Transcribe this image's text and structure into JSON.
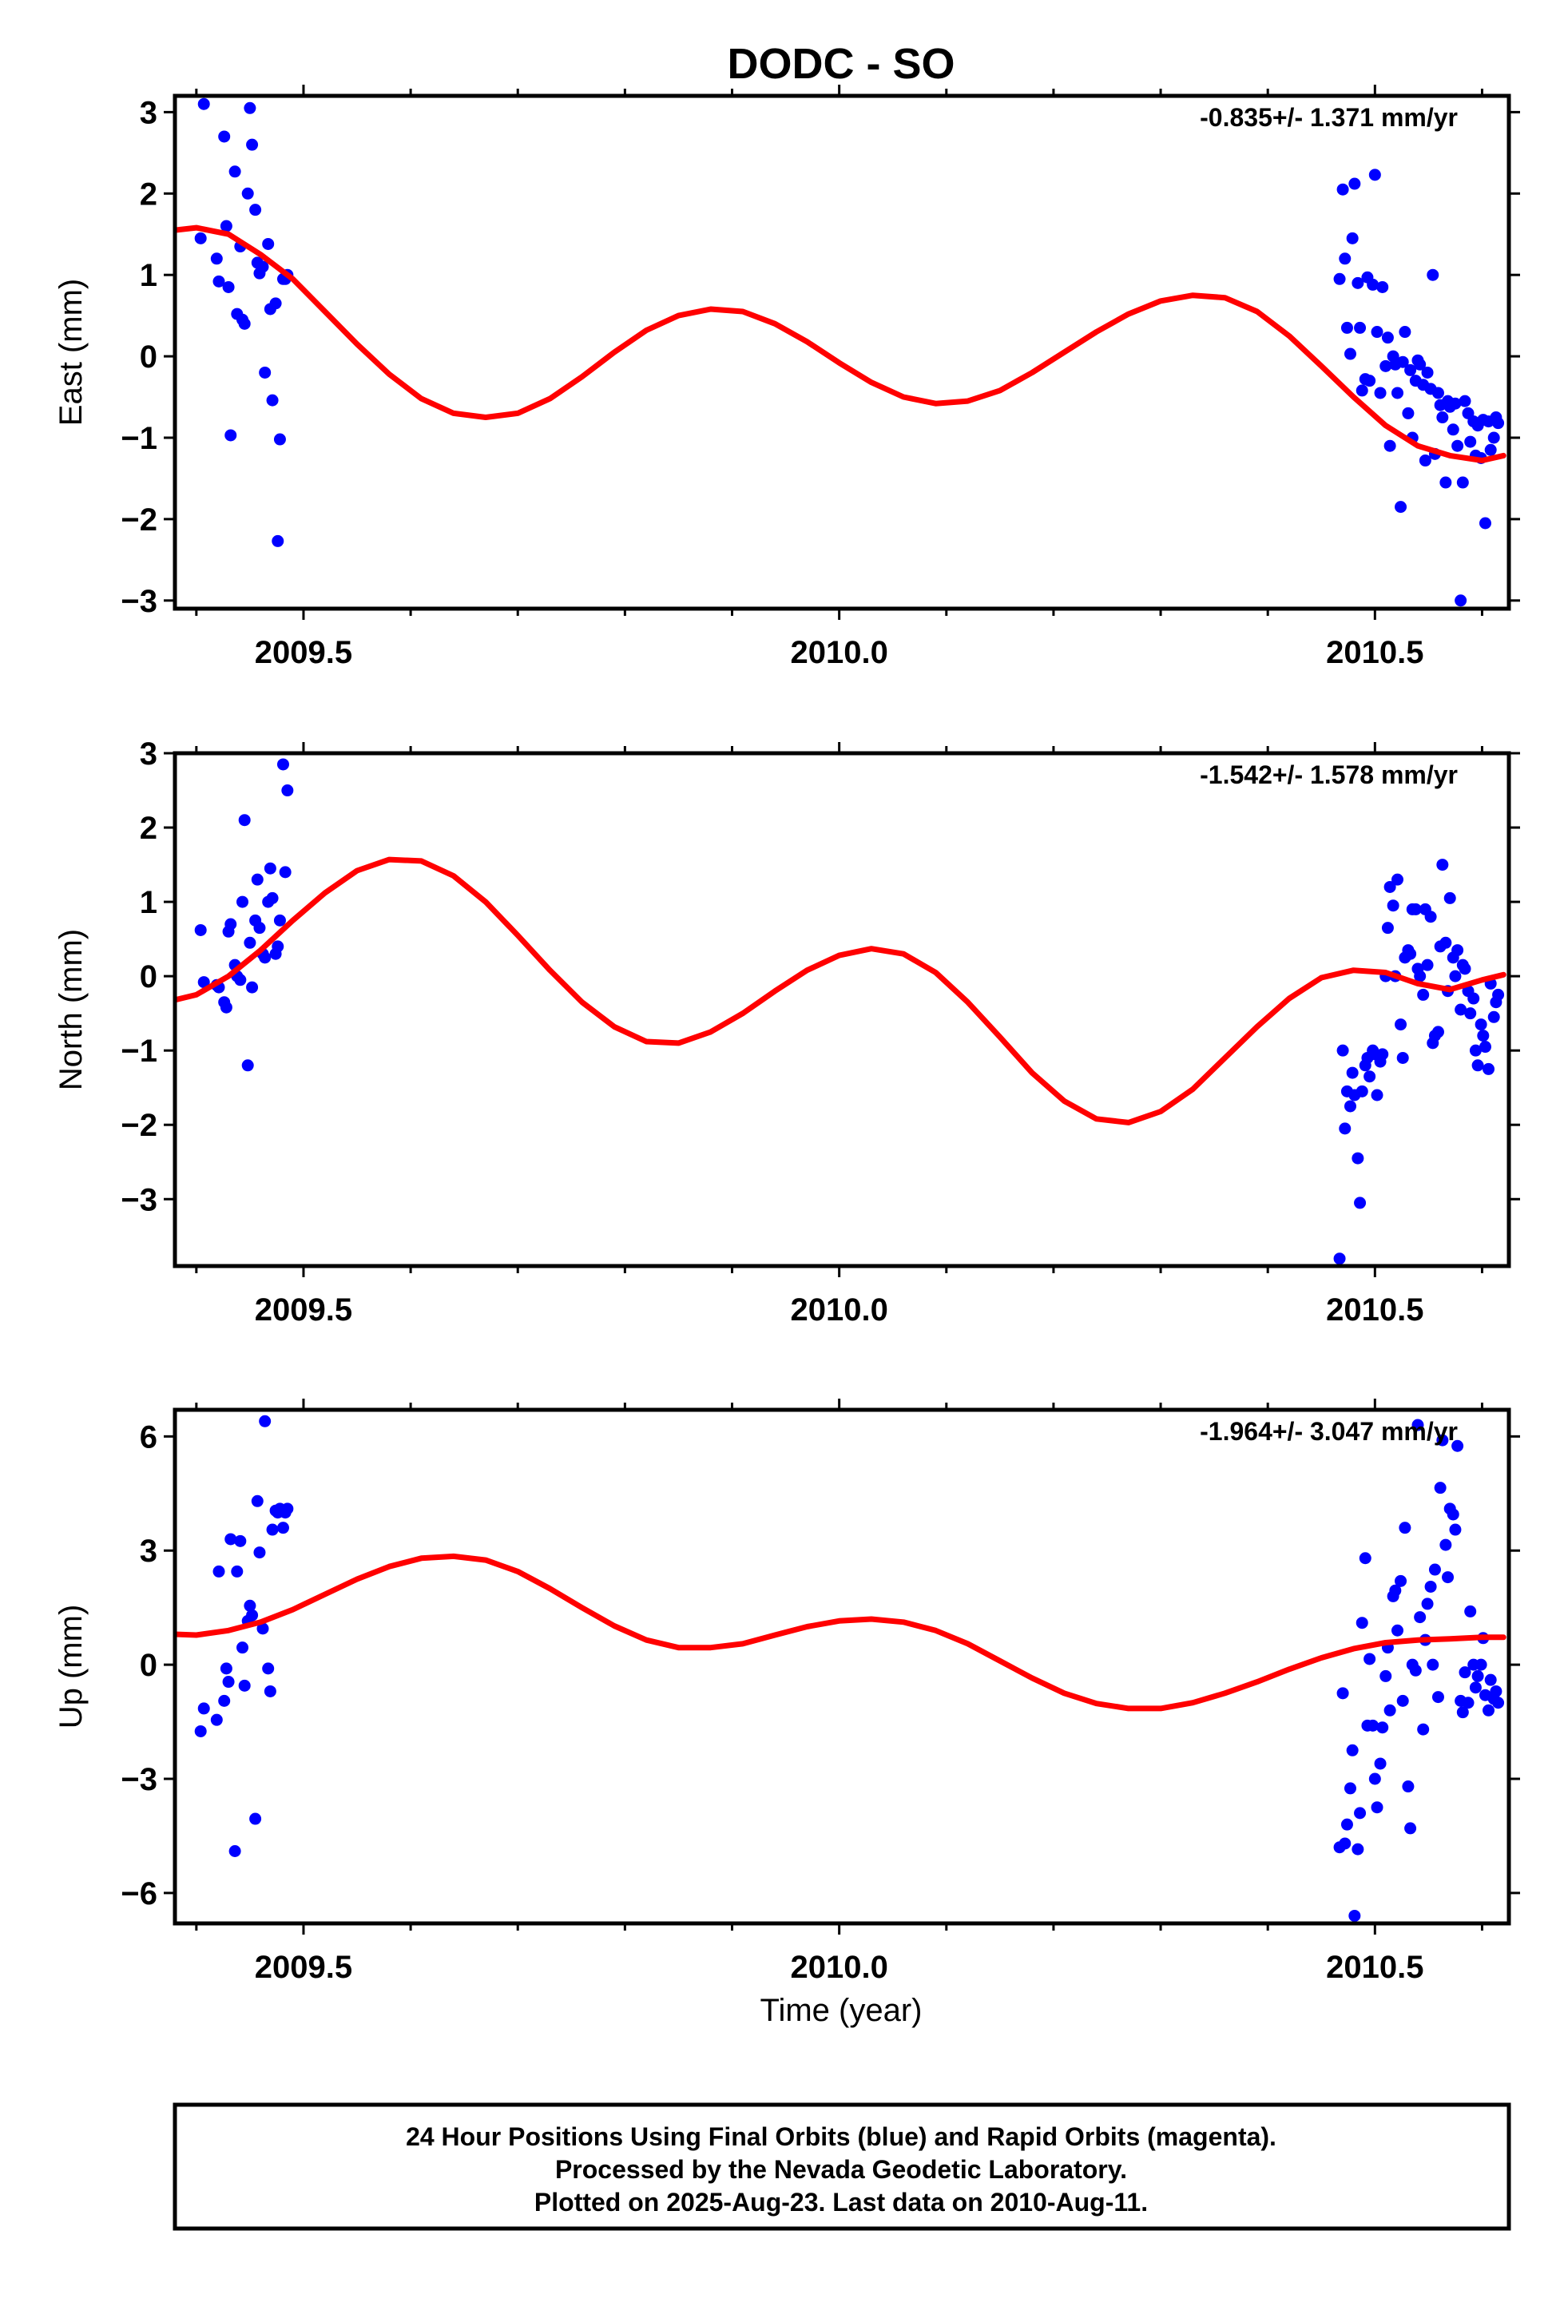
{
  "title": "DODC - SO",
  "xlabel": "Time (year)",
  "footer": {
    "line1": "24 Hour Positions Using Final Orbits (blue) and Rapid Orbits (magenta).",
    "line2": "Processed by the Nevada Geodetic Laboratory.",
    "line3": "Plotted on 2025-Aug-23. Last data on 2010-Aug-11."
  },
  "colors": {
    "final_orbits": "#0000ff",
    "model": "#ff0000",
    "frame": "#000000"
  },
  "chart_data": [
    {
      "type": "scatter",
      "ylabel": "East (mm)",
      "rate_label": "-0.835+/- 1.371 mm/yr",
      "xlim": [
        2009.38,
        2010.625
      ],
      "ylim": [
        -3.1,
        3.2
      ],
      "x_ticks": [
        "2009.5",
        "2010.0",
        "2010.5"
      ],
      "y_ticks": [
        "3",
        "2",
        "1",
        "0",
        "−1",
        "−2",
        "−3"
      ],
      "y_tick_values": [
        3,
        2,
        1,
        0,
        -1,
        -2,
        -3
      ],
      "series": [
        {
          "kind": "points",
          "x": [
            2009.404,
            2009.407,
            2009.419,
            2009.421,
            2009.426,
            2009.428,
            2009.43,
            2009.432,
            2009.436,
            2009.438,
            2009.441,
            2009.443,
            2009.445,
            2009.448,
            2009.45,
            2009.452,
            2009.455,
            2009.457,
            2009.459,
            2009.462,
            2009.464,
            2009.467,
            2009.469,
            2009.471,
            2009.474,
            2009.476,
            2009.478,
            2009.481,
            2009.483,
            2009.485,
            2010.467,
            2010.47,
            2010.472,
            2010.474,
            2010.477,
            2010.479,
            2010.481,
            2010.484,
            2010.486,
            2010.488,
            2010.491,
            2010.493,
            2010.495,
            2010.498,
            2010.5,
            2010.502,
            2010.505,
            2010.507,
            2010.51,
            2010.512,
            2010.514,
            2010.517,
            2010.519,
            2010.521,
            2010.524,
            2010.526,
            2010.528,
            2010.531,
            2010.533,
            2010.535,
            2010.538,
            2010.54,
            2010.542,
            2010.545,
            2010.547,
            2010.549,
            2010.552,
            2010.554,
            2010.556,
            2010.559,
            2010.561,
            2010.563,
            2010.566,
            2010.568,
            2010.57,
            2010.573,
            2010.575,
            2010.577,
            2010.58,
            2010.582,
            2010.584,
            2010.587,
            2010.589,
            2010.592,
            2010.594,
            2010.596,
            2010.599,
            2010.601,
            2010.603,
            2010.606,
            2010.608,
            2010.611,
            2010.613,
            2010.615
          ],
          "y": [
            1.45,
            3.1,
            1.2,
            0.92,
            2.7,
            1.6,
            0.85,
            -0.97,
            2.27,
            0.52,
            1.35,
            0.45,
            0.4,
            2.0,
            3.05,
            2.6,
            1.8,
            1.15,
            1.02,
            1.1,
            -0.2,
            1.38,
            0.58,
            -0.54,
            0.65,
            -2.27,
            -1.02,
            0.95,
            0.95,
            1.0,
            0.95,
            2.05,
            1.2,
            0.35,
            0.03,
            1.45,
            2.12,
            0.9,
            0.35,
            -0.42,
            -0.28,
            0.97,
            -0.3,
            0.88,
            2.23,
            0.3,
            -0.45,
            0.85,
            -0.12,
            0.23,
            -1.1,
            0.0,
            -0.1,
            -0.45,
            -1.85,
            -0.07,
            0.3,
            -0.7,
            -0.17,
            -1.0,
            -0.3,
            -0.05,
            -0.1,
            -0.35,
            -1.28,
            -0.2,
            -0.4,
            1.0,
            -1.2,
            -0.45,
            -0.6,
            -0.75,
            -1.55,
            -0.55,
            -0.62,
            -0.9,
            -0.58,
            -1.1,
            -3.0,
            -1.55,
            -0.55,
            -0.7,
            -1.05,
            -0.8,
            -1.22,
            -0.85,
            -1.25,
            -0.78,
            -2.05,
            -0.8,
            -1.15,
            -1.0,
            -0.75,
            -0.82
          ]
        },
        {
          "kind": "model",
          "x": [
            2009.38,
            2009.4,
            2009.43,
            2009.46,
            2009.49,
            2009.52,
            2009.55,
            2009.58,
            2009.61,
            2009.64,
            2009.67,
            2009.7,
            2009.73,
            2009.76,
            2009.79,
            2009.82,
            2009.85,
            2009.88,
            2009.91,
            2009.94,
            2009.97,
            2010.0,
            2010.03,
            2010.06,
            2010.09,
            2010.12,
            2010.15,
            2010.18,
            2010.21,
            2010.24,
            2010.27,
            2010.3,
            2010.33,
            2010.36,
            2010.39,
            2010.42,
            2010.45,
            2010.48,
            2010.51,
            2010.54,
            2010.57,
            2010.6,
            2010.62
          ],
          "y": [
            1.55,
            1.58,
            1.5,
            1.25,
            0.95,
            0.55,
            0.15,
            -0.22,
            -0.52,
            -0.7,
            -0.75,
            -0.7,
            -0.52,
            -0.25,
            0.05,
            0.32,
            0.5,
            0.58,
            0.55,
            0.4,
            0.18,
            -0.08,
            -0.32,
            -0.5,
            -0.58,
            -0.55,
            -0.42,
            -0.2,
            0.05,
            0.3,
            0.52,
            0.68,
            0.75,
            0.72,
            0.55,
            0.25,
            -0.12,
            -0.5,
            -0.85,
            -1.1,
            -1.22,
            -1.28,
            -1.22
          ]
        }
      ]
    },
    {
      "type": "scatter",
      "ylabel": "North (mm)",
      "rate_label": "-1.542+/- 1.578 mm/yr",
      "xlim": [
        2009.38,
        2010.625
      ],
      "ylim": [
        -3.9,
        3.0
      ],
      "x_ticks": [
        "2009.5",
        "2010.0",
        "2010.5"
      ],
      "y_ticks": [
        "3",
        "2",
        "1",
        "0",
        "−1",
        "−2",
        "−3"
      ],
      "y_tick_values": [
        3,
        2,
        1,
        0,
        -1,
        -2,
        -3
      ],
      "series": [
        {
          "kind": "points",
          "x": [
            2009.404,
            2009.407,
            2009.419,
            2009.421,
            2009.426,
            2009.428,
            2009.43,
            2009.432,
            2009.436,
            2009.438,
            2009.441,
            2009.443,
            2009.445,
            2009.448,
            2009.45,
            2009.452,
            2009.455,
            2009.457,
            2009.459,
            2009.462,
            2009.464,
            2009.467,
            2009.469,
            2009.471,
            2009.474,
            2009.476,
            2009.478,
            2009.481,
            2009.483,
            2009.485,
            2010.467,
            2010.47,
            2010.472,
            2010.474,
            2010.477,
            2010.479,
            2010.481,
            2010.484,
            2010.486,
            2010.488,
            2010.491,
            2010.493,
            2010.495,
            2010.498,
            2010.5,
            2010.502,
            2010.505,
            2010.507,
            2010.51,
            2010.512,
            2010.514,
            2010.517,
            2010.519,
            2010.521,
            2010.524,
            2010.526,
            2010.528,
            2010.531,
            2010.533,
            2010.535,
            2010.538,
            2010.54,
            2010.542,
            2010.545,
            2010.547,
            2010.549,
            2010.552,
            2010.554,
            2010.556,
            2010.559,
            2010.561,
            2010.563,
            2010.566,
            2010.568,
            2010.57,
            2010.573,
            2010.575,
            2010.577,
            2010.58,
            2010.582,
            2010.584,
            2010.587,
            2010.589,
            2010.592,
            2010.594,
            2010.596,
            2010.599,
            2010.601,
            2010.603,
            2010.606,
            2010.608,
            2010.611,
            2010.613,
            2010.615
          ],
          "y": [
            0.62,
            -0.08,
            -0.12,
            -0.15,
            -0.35,
            -0.42,
            0.6,
            0.7,
            0.15,
            0.0,
            -0.05,
            1.0,
            2.1,
            -1.2,
            0.45,
            -0.15,
            0.75,
            1.3,
            0.65,
            0.3,
            0.25,
            1.0,
            1.45,
            1.05,
            0.3,
            0.4,
            0.75,
            2.85,
            1.4,
            2.5,
            -3.8,
            -1.0,
            -2.05,
            -1.55,
            -1.75,
            -1.3,
            -1.6,
            -2.45,
            -3.05,
            -1.55,
            -1.2,
            -1.1,
            -1.35,
            -1.0,
            -1.05,
            -1.6,
            -1.15,
            -1.05,
            0.0,
            0.65,
            1.2,
            0.95,
            0.0,
            1.3,
            -0.65,
            -1.1,
            0.25,
            0.35,
            0.3,
            0.9,
            0.9,
            0.1,
            0.0,
            -0.25,
            0.9,
            0.15,
            0.8,
            -0.9,
            -0.8,
            -0.75,
            0.4,
            1.5,
            0.45,
            -0.2,
            1.05,
            0.25,
            0.0,
            0.35,
            -0.45,
            0.15,
            0.1,
            -0.2,
            -0.5,
            -0.3,
            -1.0,
            -1.2,
            -0.65,
            -0.8,
            -0.95,
            -1.25,
            -0.1,
            -0.55,
            -0.35,
            -0.25
          ]
        },
        {
          "kind": "model",
          "x": [
            2009.38,
            2009.4,
            2009.43,
            2009.46,
            2009.49,
            2009.52,
            2009.55,
            2009.58,
            2009.61,
            2009.64,
            2009.67,
            2009.7,
            2009.73,
            2009.76,
            2009.79,
            2009.82,
            2009.85,
            2009.88,
            2009.91,
            2009.94,
            2009.97,
            2010.0,
            2010.03,
            2010.06,
            2010.09,
            2010.12,
            2010.15,
            2010.18,
            2010.21,
            2010.24,
            2010.27,
            2010.3,
            2010.33,
            2010.36,
            2010.39,
            2010.42,
            2010.45,
            2010.48,
            2010.51,
            2010.54,
            2010.57,
            2010.6,
            2010.62
          ],
          "y": [
            -0.32,
            -0.25,
            0.0,
            0.35,
            0.75,
            1.12,
            1.42,
            1.57,
            1.55,
            1.35,
            1.0,
            0.55,
            0.08,
            -0.35,
            -0.68,
            -0.88,
            -0.9,
            -0.75,
            -0.5,
            -0.2,
            0.08,
            0.28,
            0.37,
            0.3,
            0.05,
            -0.35,
            -0.82,
            -1.3,
            -1.68,
            -1.92,
            -1.97,
            -1.82,
            -1.52,
            -1.1,
            -0.68,
            -0.3,
            -0.02,
            0.08,
            0.05,
            -0.1,
            -0.18,
            -0.05,
            0.02
          ]
        }
      ]
    },
    {
      "type": "scatter",
      "ylabel": "Up (mm)",
      "rate_label": "-1.964+/- 3.047 mm/yr",
      "xlim": [
        2009.38,
        2010.625
      ],
      "ylim": [
        -6.8,
        6.7
      ],
      "x_ticks": [
        "2009.5",
        "2010.0",
        "2010.5"
      ],
      "y_ticks": [
        "6",
        "3",
        "0",
        "−3",
        "−6"
      ],
      "y_tick_values": [
        6,
        3,
        0,
        -3,
        -6
      ],
      "series": [
        {
          "kind": "points",
          "x": [
            2009.404,
            2009.407,
            2009.419,
            2009.421,
            2009.426,
            2009.428,
            2009.43,
            2009.432,
            2009.436,
            2009.438,
            2009.441,
            2009.443,
            2009.445,
            2009.448,
            2009.45,
            2009.452,
            2009.455,
            2009.457,
            2009.459,
            2009.462,
            2009.464,
            2009.467,
            2009.469,
            2009.471,
            2009.474,
            2009.476,
            2009.478,
            2009.481,
            2009.483,
            2009.485,
            2010.467,
            2010.47,
            2010.472,
            2010.474,
            2010.477,
            2010.479,
            2010.481,
            2010.484,
            2010.486,
            2010.488,
            2010.491,
            2010.493,
            2010.495,
            2010.498,
            2010.5,
            2010.502,
            2010.505,
            2010.507,
            2010.51,
            2010.512,
            2010.514,
            2010.517,
            2010.519,
            2010.521,
            2010.524,
            2010.526,
            2010.528,
            2010.531,
            2010.533,
            2010.535,
            2010.538,
            2010.54,
            2010.542,
            2010.545,
            2010.547,
            2010.549,
            2010.552,
            2010.554,
            2010.556,
            2010.559,
            2010.561,
            2010.563,
            2010.566,
            2010.568,
            2010.57,
            2010.573,
            2010.575,
            2010.577,
            2010.58,
            2010.582,
            2010.584,
            2010.587,
            2010.589,
            2010.592,
            2010.594,
            2010.596,
            2010.599,
            2010.601,
            2010.603,
            2010.606,
            2010.608,
            2010.611,
            2010.613,
            2010.615
          ],
          "y": [
            -1.75,
            -1.15,
            -1.45,
            2.45,
            -0.95,
            -0.1,
            -0.45,
            3.3,
            -4.9,
            2.45,
            3.25,
            0.45,
            -0.55,
            1.15,
            1.55,
            1.3,
            -4.05,
            4.3,
            2.95,
            0.95,
            6.4,
            -0.1,
            -0.7,
            3.55,
            4.05,
            4.0,
            4.1,
            3.6,
            4.0,
            4.1,
            -4.8,
            -0.75,
            -4.7,
            -4.2,
            -3.25,
            -2.25,
            -6.6,
            -4.85,
            -3.9,
            1.1,
            2.8,
            -1.6,
            0.15,
            -1.6,
            -3.0,
            -3.75,
            -2.6,
            -1.65,
            -0.3,
            0.45,
            -1.2,
            1.8,
            1.95,
            0.9,
            2.2,
            -0.95,
            3.6,
            -3.2,
            -4.3,
            0.0,
            -0.15,
            6.3,
            1.25,
            -1.7,
            0.65,
            1.6,
            2.05,
            0.0,
            2.5,
            -0.85,
            4.65,
            5.9,
            3.15,
            2.3,
            4.1,
            3.95,
            3.55,
            5.75,
            -0.95,
            -1.25,
            -0.2,
            -1.0,
            1.4,
            0.0,
            -0.6,
            -0.3,
            0.0,
            0.7,
            -0.8,
            -1.2,
            -0.4,
            -0.9,
            -0.7,
            -1.0
          ]
        },
        {
          "kind": "model",
          "x": [
            2009.38,
            2009.4,
            2009.43,
            2009.46,
            2009.49,
            2009.52,
            2009.55,
            2009.58,
            2009.61,
            2009.64,
            2009.67,
            2009.7,
            2009.73,
            2009.76,
            2009.79,
            2009.82,
            2009.85,
            2009.88,
            2009.91,
            2009.94,
            2009.97,
            2010.0,
            2010.03,
            2010.06,
            2010.09,
            2010.12,
            2010.15,
            2010.18,
            2010.21,
            2010.24,
            2010.27,
            2010.3,
            2010.33,
            2010.36,
            2010.39,
            2010.42,
            2010.45,
            2010.48,
            2010.51,
            2010.54,
            2010.57,
            2010.6,
            2010.62
          ],
          "y": [
            0.8,
            0.78,
            0.9,
            1.12,
            1.45,
            1.85,
            2.25,
            2.58,
            2.8,
            2.85,
            2.75,
            2.45,
            2.0,
            1.5,
            1.02,
            0.65,
            0.45,
            0.45,
            0.55,
            0.78,
            1.0,
            1.15,
            1.2,
            1.12,
            0.9,
            0.55,
            0.1,
            -0.35,
            -0.75,
            -1.02,
            -1.15,
            -1.15,
            -1.0,
            -0.75,
            -0.45,
            -0.12,
            0.18,
            0.42,
            0.58,
            0.65,
            0.68,
            0.72,
            0.72
          ]
        }
      ]
    }
  ]
}
